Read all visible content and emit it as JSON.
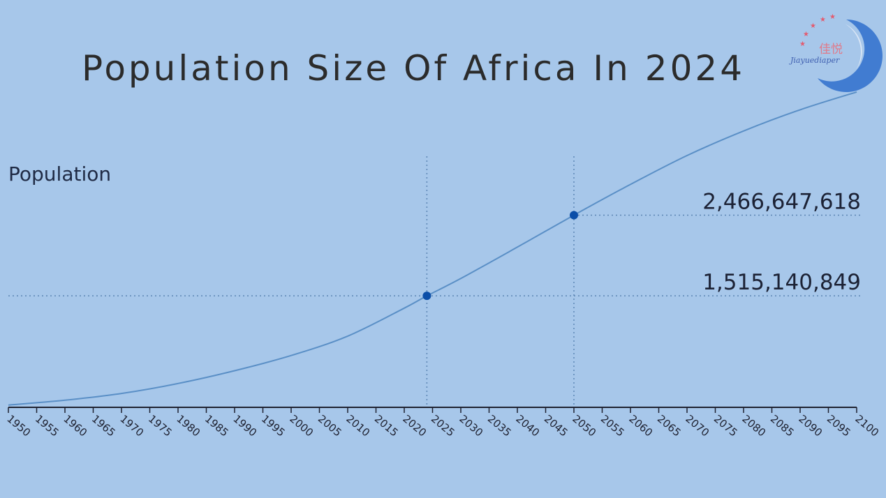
{
  "chart_data": {
    "type": "line",
    "title": "Population Size Of Africa In 2024",
    "ylabel": "Population",
    "xlabel": "",
    "xlim": [
      1950,
      2100
    ],
    "ylim": [
      200000000,
      4100000000
    ],
    "x_ticks": [
      1950,
      1955,
      1960,
      1965,
      1970,
      1975,
      1980,
      1985,
      1990,
      1995,
      2000,
      2005,
      2010,
      2015,
      2020,
      2025,
      2030,
      2035,
      2040,
      2045,
      2050,
      2055,
      2060,
      2065,
      2070,
      2075,
      2080,
      2085,
      2090,
      2095,
      2100
    ],
    "series": [
      {
        "x": [
          1950,
          1960,
          1970,
          1980,
          1990,
          2000,
          2010,
          2020,
          2024,
          2030,
          2040,
          2050,
          2060,
          2070,
          2080,
          2090,
          2100
        ],
        "values": [
          227000000,
          284000000,
          364000000,
          481000000,
          632000000,
          811000000,
          1040000000,
          1370000000,
          1515140849,
          1720000000,
          2090000000,
          2466647618,
          2830000000,
          3170000000,
          3460000000,
          3710000000,
          3920000000
        ]
      }
    ],
    "highlights": [
      {
        "x": 2024,
        "y": 1515140849,
        "label": "1,515,140,849"
      },
      {
        "x": 2050,
        "y": 2466647618,
        "label": "2,466,647,618"
      }
    ],
    "grid": false,
    "colors": {
      "background": "#a7c7ea",
      "line": "#5a8fc6",
      "marker": "#0b4ea8",
      "guide": "#5c85b4",
      "axis": "#1e2130"
    }
  },
  "logo": {
    "cjk": "佳悦",
    "latin": "Jiayuediaper"
  }
}
